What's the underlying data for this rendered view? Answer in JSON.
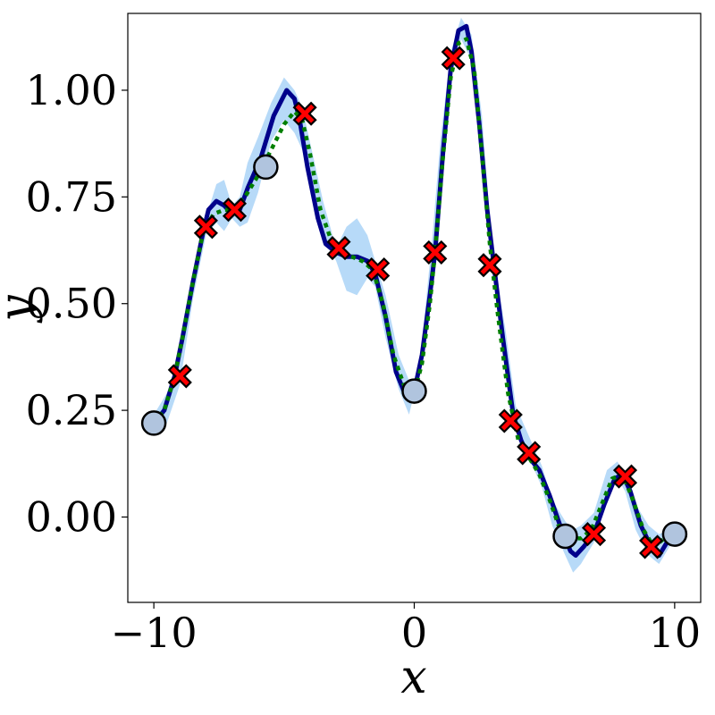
{
  "chart_data": {
    "type": "line",
    "xlabel": "x",
    "ylabel": "y",
    "xlim": [
      -11,
      11
    ],
    "ylim": [
      -0.2,
      1.18
    ],
    "x_ticks": [
      {
        "value": -10,
        "label": "−10"
      },
      {
        "value": 0,
        "label": "0"
      },
      {
        "value": 10,
        "label": "10"
      }
    ],
    "y_ticks": [
      {
        "value": 0,
        "label": "0.00"
      },
      {
        "value": 0.25,
        "label": "0.25"
      },
      {
        "value": 0.5,
        "label": "0.50"
      },
      {
        "value": 0.75,
        "label": "0.75"
      },
      {
        "value": 1.0,
        "label": "1.00"
      }
    ],
    "grid": false,
    "legend": "none",
    "colors": {
      "mean_line": "#00008b",
      "true_function": "#007f00",
      "band": "#9fcdf5",
      "cross_marker": "#ff0000",
      "circle_marker": "#b0c4de"
    },
    "series": [
      {
        "style": "solid-line",
        "x": [
          -10,
          -9.6,
          -9.2,
          -8.9,
          -8.5,
          -8.1,
          -7.9,
          -7.6,
          -7.3,
          -7.0,
          -6.7,
          -6.4,
          -5.9,
          -5.4,
          -4.9,
          -4.6,
          -4.4,
          -4.1,
          -3.7,
          -3.4,
          -3.0,
          -2.6,
          -2.2,
          -1.8,
          -1.5,
          -1.1,
          -0.7,
          -0.3,
          0.0,
          0.3,
          0.6,
          0.8,
          1.1,
          1.4,
          1.7,
          2.0,
          2.2,
          2.5,
          2.8,
          3.1,
          3.4,
          3.8,
          4.1,
          4.4,
          4.8,
          5.2,
          5.6,
          6.0,
          6.2,
          6.5,
          6.9,
          7.3,
          7.7,
          8.0,
          8.3,
          8.7,
          9.1,
          9.4,
          9.7,
          10.0
        ],
        "y": [
          0.22,
          0.25,
          0.33,
          0.42,
          0.55,
          0.67,
          0.72,
          0.74,
          0.73,
          0.71,
          0.72,
          0.77,
          0.84,
          0.94,
          1.0,
          0.98,
          0.93,
          0.82,
          0.7,
          0.64,
          0.62,
          0.61,
          0.61,
          0.6,
          0.57,
          0.47,
          0.34,
          0.28,
          0.295,
          0.38,
          0.52,
          0.62,
          0.85,
          1.05,
          1.14,
          1.15,
          1.09,
          0.92,
          0.72,
          0.57,
          0.42,
          0.24,
          0.18,
          0.14,
          0.11,
          0.05,
          -0.02,
          -0.08,
          -0.09,
          -0.07,
          -0.04,
          0.03,
          0.09,
          0.1,
          0.06,
          -0.02,
          -0.07,
          -0.09,
          -0.06,
          -0.04
        ]
      },
      {
        "style": "dotted-line",
        "x": [
          -10,
          -9.6,
          -9.2,
          -8.9,
          -8.5,
          -8.1,
          -7.7,
          -7.3,
          -7.0,
          -6.5,
          -6.0,
          -5.5,
          -5.0,
          -4.6,
          -4.3,
          -4.0,
          -3.6,
          -3.2,
          -2.8,
          -2.4,
          -2.0,
          -1.6,
          -1.2,
          -0.8,
          -0.4,
          0.0,
          0.3,
          0.6,
          0.8,
          1.1,
          1.4,
          1.7,
          2.0,
          2.3,
          2.6,
          2.9,
          3.2,
          3.6,
          4.0,
          4.4,
          4.8,
          5.2,
          5.6,
          6.0,
          6.4,
          6.8,
          7.2,
          7.6,
          8.0,
          8.4,
          8.8,
          9.2,
          9.6,
          10.0
        ],
        "y": [
          0.22,
          0.25,
          0.33,
          0.42,
          0.55,
          0.67,
          0.71,
          0.72,
          0.72,
          0.75,
          0.8,
          0.86,
          0.92,
          0.95,
          0.93,
          0.85,
          0.72,
          0.65,
          0.62,
          0.61,
          0.6,
          0.58,
          0.5,
          0.38,
          0.31,
          0.29,
          0.36,
          0.5,
          0.62,
          0.84,
          1.03,
          1.11,
          1.12,
          1.05,
          0.85,
          0.64,
          0.48,
          0.29,
          0.18,
          0.14,
          0.1,
          0.04,
          -0.03,
          -0.05,
          -0.05,
          -0.03,
          0.03,
          0.09,
          0.1,
          0.04,
          -0.03,
          -0.07,
          -0.05,
          -0.04
        ]
      },
      {
        "style": "band",
        "x": [
          -10,
          -9.5,
          -9.0,
          -8.5,
          -8.0,
          -7.6,
          -7.3,
          -7.0,
          -6.7,
          -6.4,
          -6.0,
          -5.5,
          -5.0,
          -4.6,
          -4.3,
          -3.9,
          -3.5,
          -3.0,
          -2.6,
          -2.2,
          -1.8,
          -1.5,
          -1.1,
          -0.6,
          -0.2,
          0.0,
          0.3,
          0.7,
          1.0,
          1.4,
          1.8,
          2.2,
          2.6,
          3.0,
          3.5,
          3.9,
          4.4,
          4.9,
          5.3,
          5.8,
          6.1,
          6.4,
          6.9,
          7.4,
          7.8,
          8.1,
          8.5,
          9.0,
          9.4,
          9.8,
          10.0
        ],
        "lower": [
          0.2,
          0.22,
          0.31,
          0.51,
          0.66,
          0.69,
          0.67,
          0.7,
          0.68,
          0.69,
          0.76,
          0.88,
          0.93,
          0.9,
          0.86,
          0.76,
          0.66,
          0.6,
          0.53,
          0.52,
          0.56,
          0.54,
          0.42,
          0.3,
          0.24,
          0.29,
          0.37,
          0.59,
          0.82,
          1.03,
          1.12,
          1.07,
          0.86,
          0.58,
          0.37,
          0.2,
          0.14,
          0.07,
          -0.02,
          -0.09,
          -0.13,
          -0.11,
          -0.06,
          0.04,
          0.09,
          0.06,
          -0.03,
          -0.09,
          -0.11,
          -0.07,
          -0.04
        ],
        "upper": [
          0.24,
          0.29,
          0.37,
          0.57,
          0.7,
          0.78,
          0.79,
          0.73,
          0.75,
          0.83,
          0.89,
          0.97,
          1.03,
          1.0,
          0.96,
          0.85,
          0.74,
          0.63,
          0.68,
          0.7,
          0.66,
          0.6,
          0.52,
          0.38,
          0.32,
          0.3,
          0.41,
          0.66,
          0.88,
          1.09,
          1.17,
          1.13,
          0.94,
          0.62,
          0.44,
          0.26,
          0.19,
          0.12,
          0.04,
          -0.01,
          -0.03,
          -0.02,
          0.01,
          0.11,
          0.13,
          0.1,
          0.03,
          -0.02,
          -0.04,
          -0.03,
          -0.03
        ]
      },
      {
        "style": "cross-markers",
        "points": [
          [
            -9.0,
            0.33
          ],
          [
            -8.0,
            0.68
          ],
          [
            -6.9,
            0.72
          ],
          [
            -4.2,
            0.945
          ],
          [
            -2.9,
            0.63
          ],
          [
            -1.4,
            0.58
          ],
          [
            0.8,
            0.62
          ],
          [
            1.5,
            1.075
          ],
          [
            2.9,
            0.59
          ],
          [
            3.7,
            0.225
          ],
          [
            4.4,
            0.15
          ],
          [
            6.9,
            -0.04
          ],
          [
            8.1,
            0.095
          ],
          [
            9.1,
            -0.07
          ]
        ]
      },
      {
        "style": "circle-markers",
        "points": [
          [
            -10.0,
            0.22
          ],
          [
            -5.7,
            0.82
          ],
          [
            0.0,
            0.295
          ],
          [
            5.8,
            -0.045
          ],
          [
            10.0,
            -0.04
          ]
        ]
      }
    ]
  }
}
